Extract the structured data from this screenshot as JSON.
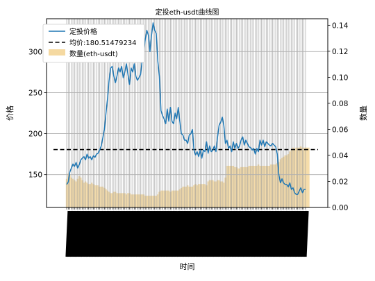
{
  "chart_data": {
    "type": "line",
    "title": "定投eth-usdt曲线图",
    "xlabel": "时间",
    "ylabel_left": "价格",
    "ylabel_right": "数量",
    "ylim_left": [
      110,
      340
    ],
    "ylim_right": [
      0,
      0.145
    ],
    "yticks_left": [
      150,
      200,
      250,
      300
    ],
    "yticks_right": [
      0.0,
      0.02,
      0.04,
      0.06,
      0.08,
      0.1,
      0.12,
      0.14
    ],
    "grid": true,
    "legend_position": "top-left",
    "legend": [
      "定投价格",
      "均价:180.51479234",
      "数量(eth-usdt)"
    ],
    "x_tick_labels_note": "dense dates, unreadable",
    "series": [
      {
        "name": "定投价格",
        "axis": "left",
        "style": "line",
        "color": "#1f77b4",
        "values": [
          138,
          141,
          153,
          158,
          163,
          160,
          165,
          158,
          162,
          168,
          170,
          172,
          168,
          175,
          170,
          172,
          168,
          173,
          171,
          175,
          176,
          180,
          185,
          195,
          205,
          225,
          242,
          265,
          280,
          282,
          270,
          262,
          270,
          280,
          275,
          282,
          268,
          275,
          285,
          272,
          260,
          280,
          275,
          285,
          270,
          265,
          268,
          272,
          288,
          298,
          315,
          326,
          320,
          300,
          320,
          335,
          326,
          322,
          288,
          270,
          228,
          222,
          218,
          212,
          230,
          215,
          232,
          215,
          212,
          225,
          218,
          232,
          215,
          200,
          198,
          192,
          192,
          188,
          198,
          200,
          205,
          180,
          174,
          178,
          172,
          180,
          170,
          180,
          178,
          190,
          176,
          185,
          178,
          180,
          185,
          178,
          196,
          210,
          214,
          220,
          210,
          188,
          192,
          182,
          185,
          178,
          190,
          182,
          188,
          182,
          185,
          192,
          196,
          186,
          192,
          188,
          184,
          183,
          180,
          182,
          175,
          182,
          178,
          192,
          186,
          192,
          184,
          190,
          188,
          186,
          185,
          188,
          186,
          184,
          175,
          150,
          140,
          145,
          140,
          138,
          138,
          135,
          140,
          132,
          134,
          128,
          126,
          126,
          130,
          134,
          128,
          132,
          132
        ]
      },
      {
        "name": "均价:180.51479234",
        "axis": "left",
        "style": "dashed",
        "color": "#000000",
        "value": 180.51479234
      },
      {
        "name": "数量(eth-usdt)",
        "axis": "right",
        "style": "bar",
        "color": "#f5d9a1",
        "values": [
          0.022,
          0.026,
          0.025,
          0.023,
          0.022,
          0.021,
          0.02,
          0.022,
          0.024,
          0.023,
          0.021,
          0.019,
          0.02,
          0.019,
          0.018,
          0.018,
          0.019,
          0.018,
          0.017,
          0.017,
          0.017,
          0.016,
          0.016,
          0.016,
          0.015,
          0.014,
          0.013,
          0.012,
          0.011,
          0.011,
          0.012,
          0.012,
          0.011,
          0.011,
          0.011,
          0.011,
          0.011,
          0.011,
          0.01,
          0.011,
          0.011,
          0.01,
          0.01,
          0.01,
          0.01,
          0.01,
          0.01,
          0.01,
          0.01,
          0.01,
          0.009,
          0.009,
          0.009,
          0.009,
          0.009,
          0.009,
          0.009,
          0.009,
          0.01,
          0.012,
          0.013,
          0.013,
          0.013,
          0.013,
          0.013,
          0.013,
          0.012,
          0.013,
          0.013,
          0.013,
          0.013,
          0.013,
          0.014,
          0.015,
          0.016,
          0.016,
          0.016,
          0.017,
          0.016,
          0.016,
          0.016,
          0.017,
          0.018,
          0.017,
          0.018,
          0.018,
          0.018,
          0.018,
          0.018,
          0.017,
          0.02,
          0.021,
          0.021,
          0.021,
          0.02,
          0.02,
          0.021,
          0.021,
          0.02,
          0.02,
          0.019,
          0.023,
          0.032,
          0.032,
          0.032,
          0.032,
          0.032,
          0.031,
          0.031,
          0.03,
          0.03,
          0.031,
          0.031,
          0.031,
          0.031,
          0.031,
          0.032,
          0.032,
          0.032,
          0.032,
          0.032,
          0.032,
          0.033,
          0.032,
          0.032,
          0.032,
          0.032,
          0.032,
          0.032,
          0.032,
          0.033,
          0.033,
          0.033,
          0.033,
          0.034,
          0.035,
          0.037,
          0.038,
          0.039,
          0.04,
          0.04,
          0.041,
          0.043,
          0.045,
          0.046,
          0.045,
          0.046,
          0.046,
          0.046,
          0.047,
          0.046,
          0.046,
          0.046,
          0.046,
          0.046
        ]
      }
    ]
  }
}
